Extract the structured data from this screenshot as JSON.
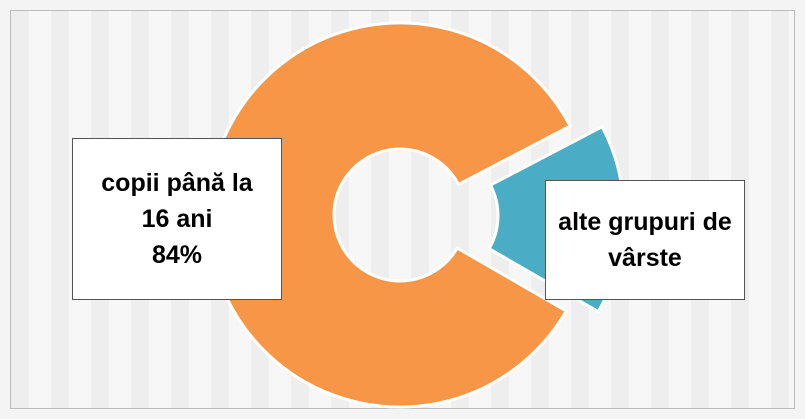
{
  "chart_data": {
    "type": "doughnut",
    "categories": [
      "copii până la 16 ani",
      "alte grupuri de vârste"
    ],
    "values": [
      84,
      16
    ],
    "value_labels": [
      "84%",
      null
    ],
    "colors": [
      "#f79646",
      "#4bacc6"
    ]
  }
}
